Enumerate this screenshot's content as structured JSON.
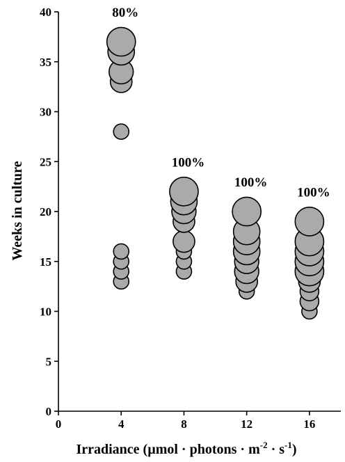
{
  "chart_data": {
    "type": "scatter",
    "xlabel": "Irradiance (µmol · photons · m",
    "xlabel_sup1": "-2",
    "xlabel_mid": " · s",
    "xlabel_sup2": "-1",
    "xlabel_end": ")",
    "ylabel": "Weeks in culture",
    "xlim": [
      0,
      18
    ],
    "ylim": [
      0,
      40
    ],
    "xticks": [
      0,
      4,
      8,
      12,
      16
    ],
    "yticks": [
      0,
      5,
      10,
      15,
      20,
      25,
      30,
      35,
      40
    ],
    "grid": false,
    "colors": {
      "bubble_fill": "#aaaaaa",
      "bubble_stroke": "#000000"
    },
    "annotations": [
      {
        "x": 4,
        "y": 39.5,
        "text": "80%"
      },
      {
        "x": 8,
        "y": 24.5,
        "text": "100%"
      },
      {
        "x": 12,
        "y": 22.5,
        "text": "100%"
      },
      {
        "x": 16,
        "y": 21.5,
        "text": "100%"
      }
    ],
    "points": [
      {
        "x": 4,
        "y": 13,
        "size": 1
      },
      {
        "x": 4,
        "y": 14,
        "size": 1
      },
      {
        "x": 4,
        "y": 15,
        "size": 1
      },
      {
        "x": 4,
        "y": 16,
        "size": 1
      },
      {
        "x": 4,
        "y": 28,
        "size": 1
      },
      {
        "x": 4,
        "y": 33,
        "size": 2
      },
      {
        "x": 4,
        "y": 34,
        "size": 2.5
      },
      {
        "x": 4,
        "y": 36,
        "size": 3
      },
      {
        "x": 4,
        "y": 37,
        "size": 3.5
      },
      {
        "x": 8,
        "y": 14,
        "size": 1
      },
      {
        "x": 8,
        "y": 15,
        "size": 1
      },
      {
        "x": 8,
        "y": 16,
        "size": 1
      },
      {
        "x": 8,
        "y": 17,
        "size": 2
      },
      {
        "x": 8,
        "y": 19,
        "size": 2
      },
      {
        "x": 8,
        "y": 20,
        "size": 2.5
      },
      {
        "x": 8,
        "y": 21,
        "size": 3
      },
      {
        "x": 8,
        "y": 22,
        "size": 3.5
      },
      {
        "x": 12,
        "y": 12,
        "size": 1
      },
      {
        "x": 12,
        "y": 13,
        "size": 2
      },
      {
        "x": 12,
        "y": 14,
        "size": 2.5
      },
      {
        "x": 12,
        "y": 15,
        "size": 2.5
      },
      {
        "x": 12,
        "y": 16,
        "size": 3
      },
      {
        "x": 12,
        "y": 17,
        "size": 3
      },
      {
        "x": 12,
        "y": 18,
        "size": 3
      },
      {
        "x": 12,
        "y": 20,
        "size": 3.5
      },
      {
        "x": 16,
        "y": 10,
        "size": 1
      },
      {
        "x": 16,
        "y": 11,
        "size": 1.5
      },
      {
        "x": 16,
        "y": 12,
        "size": 1.5
      },
      {
        "x": 16,
        "y": 13,
        "size": 2
      },
      {
        "x": 16,
        "y": 14,
        "size": 3.5
      },
      {
        "x": 16,
        "y": 15,
        "size": 3.5
      },
      {
        "x": 16,
        "y": 16,
        "size": 3.5
      },
      {
        "x": 16,
        "y": 17,
        "size": 3.5
      },
      {
        "x": 16,
        "y": 19,
        "size": 3.5
      }
    ]
  }
}
